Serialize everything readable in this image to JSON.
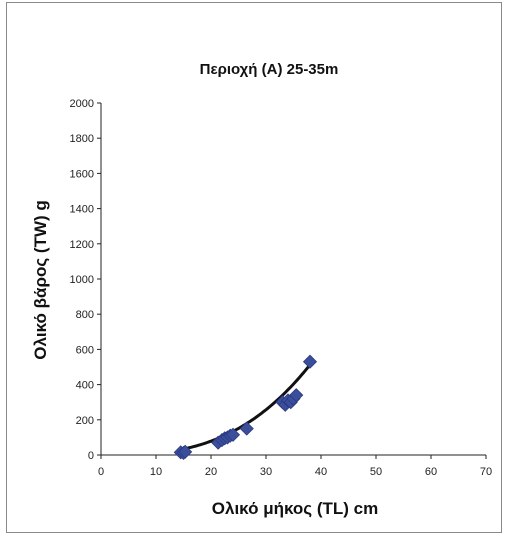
{
  "chart_data": {
    "type": "scatter",
    "title": "Περιοχή (Α) 25-35m",
    "xlabel": "Ολικό μήκος (TL) cm",
    "ylabel": "Ολικό βάρος (TW) g",
    "xlim": [
      0,
      70
    ],
    "ylim": [
      0,
      2000
    ],
    "x_ticks": [
      "0",
      "10",
      "20",
      "30",
      "40",
      "50",
      "60",
      "70"
    ],
    "y_ticks": [
      "0",
      "200",
      "400",
      "600",
      "800",
      "1000",
      "1200",
      "1400",
      "1600",
      "1800",
      "2000"
    ],
    "grid": false,
    "marker_color": "#3b4e9c",
    "trendline_color": "#111111",
    "series": [
      {
        "points": [
          [
            14.5,
            15
          ],
          [
            15,
            12
          ],
          [
            15.3,
            18
          ],
          [
            21.3,
            70
          ],
          [
            22,
            85
          ],
          [
            22.5,
            95
          ],
          [
            23,
            100
          ],
          [
            23.5,
            110
          ],
          [
            24,
            115
          ],
          [
            26.5,
            150
          ],
          [
            33,
            300
          ],
          [
            33.5,
            285
          ],
          [
            34,
            310
          ],
          [
            34.5,
            300
          ],
          [
            35,
            320
          ],
          [
            35.5,
            340
          ],
          [
            38,
            530
          ]
        ]
      }
    ],
    "trendline": {
      "type": "power",
      "a": 0.0125,
      "b": 2.92,
      "x_range": [
        14,
        38.5
      ]
    }
  }
}
